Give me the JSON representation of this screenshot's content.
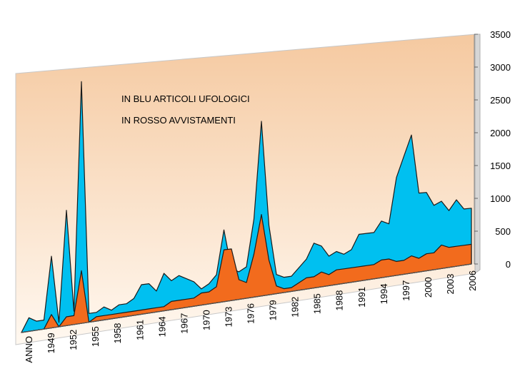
{
  "chart_data": {
    "type": "area",
    "title": "",
    "xlabel": "",
    "ylabel": "",
    "annotations": [
      "IN BLU ARTICOLI UFOLOGICI",
      "IN ROSSO AVVISTAMENTI"
    ],
    "ylim": [
      0,
      3500
    ],
    "yticks": [
      0,
      500,
      1000,
      1500,
      2000,
      2500,
      3000,
      3500
    ],
    "xtick_labels": [
      "ANNO",
      "1949",
      "1952",
      "1955",
      "1958",
      "1961",
      "1964",
      "1967",
      "1970",
      "1973",
      "1976",
      "1979",
      "1982",
      "1985",
      "1988",
      "1991",
      "1994",
      "1997",
      "2000",
      "2003",
      "2006"
    ],
    "x": [
      1946,
      1947,
      1948,
      1949,
      1950,
      1951,
      1952,
      1953,
      1954,
      1955,
      1956,
      1957,
      1958,
      1959,
      1960,
      1961,
      1962,
      1963,
      1964,
      1965,
      1966,
      1967,
      1968,
      1969,
      1970,
      1971,
      1972,
      1973,
      1974,
      1975,
      1976,
      1977,
      1978,
      1979,
      1980,
      1981,
      1982,
      1983,
      1984,
      1985,
      1986,
      1987,
      1988,
      1989,
      1990,
      1991,
      1992,
      1993,
      1994,
      1995,
      1996,
      1997,
      1998,
      1999,
      2000,
      2001,
      2002,
      2003,
      2004,
      2005,
      2006
    ],
    "series": [
      {
        "values": [
          0,
          150,
          100,
          100,
          800,
          50,
          1300,
          150,
          2750,
          100,
          100,
          150,
          100,
          150,
          150,
          200,
          350,
          350,
          250,
          450,
          350,
          400,
          350,
          300,
          200,
          250,
          350,
          900,
          400,
          350,
          400,
          1000,
          2250,
          900,
          250,
          200,
          200,
          300,
          400,
          600,
          550,
          400,
          450,
          400,
          450,
          650,
          650,
          650,
          800,
          750,
          1400,
          1700,
          2000,
          1150,
          1150,
          950,
          1000,
          850,
          1000,
          850,
          850
        ],
        "color": "#00c0f0"
      },
      {
        "values": [
          0,
          0,
          0,
          0,
          150,
          0,
          100,
          100,
          600,
          0,
          50,
          50,
          50,
          50,
          50,
          50,
          50,
          50,
          50,
          50,
          100,
          100,
          100,
          100,
          150,
          150,
          200,
          650,
          650,
          250,
          200,
          550,
          1050,
          450,
          100,
          50,
          50,
          100,
          150,
          150,
          200,
          150,
          200,
          200,
          200,
          200,
          200,
          200,
          250,
          250,
          200,
          200,
          250,
          200,
          250,
          250,
          350,
          300,
          300,
          300,
          300
        ],
        "color": "#f26b1d"
      }
    ],
    "grid": false,
    "wall_color_top": "#f5c9a0",
    "wall_color_bottom": "#fff8f0",
    "style": "3d-perspective"
  }
}
